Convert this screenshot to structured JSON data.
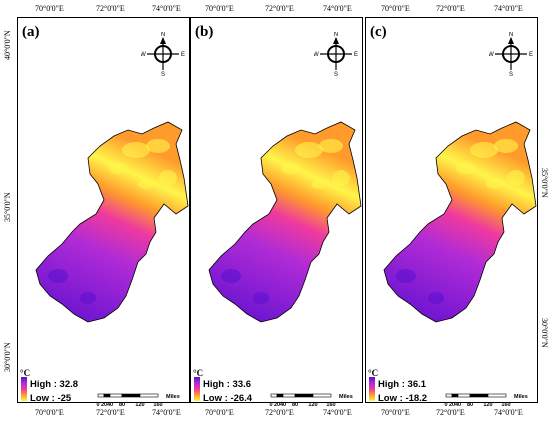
{
  "map": {
    "top_ticks": [
      "70°0'0\"E",
      "72°0'0\"E",
      "74°0'0\"E"
    ],
    "bottom_ticks": [
      "70°0'0\"E",
      "72°0'0\"E",
      "74°0'0\"E"
    ],
    "lat_ticks": [
      "40°0'0\"N",
      "35°0'0\"N",
      "30°0'0\"N"
    ],
    "compass": {
      "n": "N",
      "s": "S",
      "e": "E",
      "w": "W"
    },
    "scale": {
      "ticks": [
        "0",
        "20",
        "40",
        "80",
        "120",
        "160"
      ],
      "unit": "Miles"
    },
    "legend_unit": "°C",
    "panels": [
      {
        "label": "(a)",
        "high": "High : 32.8",
        "low": "Low : -25"
      },
      {
        "label": "(b)",
        "high": "High : 33.6",
        "low": "Low : -26.4"
      },
      {
        "label": "(c)",
        "high": "High : 36.1",
        "low": "Low : -18.2"
      }
    ],
    "ramp_colors": [
      "#5a0fd0",
      "#b12bd6",
      "#ef3a9e",
      "#ff9b2b",
      "#fff54a"
    ]
  }
}
